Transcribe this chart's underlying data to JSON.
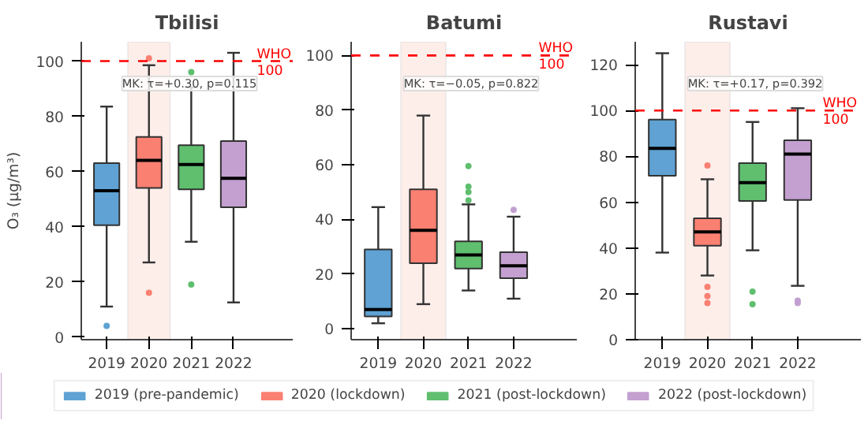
{
  "chart_data": [
    {
      "type": "box",
      "title": "Tbilisi",
      "ylabel": "O₃ (µg/m³)",
      "categories": [
        "2019",
        "2020",
        "2021",
        "2022"
      ],
      "ylim": [
        -1,
        107
      ],
      "yticks": [
        0,
        20,
        40,
        60,
        80,
        100
      ],
      "grid": false,
      "legend": "bottom",
      "series": [
        {
          "name": "2019 (pre-pandemic)",
          "color": "#5fa2d3",
          "boxes": [
            {
              "low": 11,
              "q1": 40.5,
              "median": 53,
              "q3": 63,
              "high": 83.5,
              "outliers": [
                4
              ]
            },
            null,
            null,
            null
          ]
        },
        {
          "name": "2020 (lockdown)",
          "color": "#fa8072",
          "boxes": [
            null,
            {
              "low": 27,
              "q1": 54,
              "median": 64,
              "q3": 72.5,
              "high": 98.5,
              "outliers": [
                16,
                101
              ]
            },
            null,
            null
          ]
        },
        {
          "name": "2021 (post-lockdown)",
          "color": "#5fbf6f",
          "boxes": [
            null,
            null,
            {
              "low": 34.5,
              "q1": 53.5,
              "median": 62.5,
              "q3": 69.5,
              "high": 90.5,
              "outliers": [
                19,
                96
              ]
            },
            null
          ]
        },
        {
          "name": "2022 (post-lockdown)",
          "color": "#c3a0d0",
          "boxes": [
            null,
            null,
            null,
            {
              "low": 12.5,
              "q1": 47,
              "median": 57.5,
              "q3": 71,
              "high": 103
            }
          ]
        }
      ],
      "ref_lines": [
        {
          "axis": "y",
          "value": 100,
          "label": "WHO\n100",
          "color": "#ff0000",
          "line_style": "dashed"
        }
      ],
      "bands": [
        {
          "axis": "x",
          "from": "2020",
          "to": "2020",
          "color": "#fdeeea"
        }
      ],
      "annotations": [
        "MK: τ=+0.30, p=0.115"
      ]
    },
    {
      "type": "box",
      "title": "Batumi",
      "categories": [
        "2019",
        "2020",
        "2021",
        "2022"
      ],
      "ylim": [
        -4,
        105
      ],
      "yticks": [
        0,
        20,
        40,
        60,
        80,
        100
      ],
      "grid": false,
      "series": [
        {
          "color": "#5fa2d3",
          "boxes": [
            {
              "low": 2,
              "q1": 4.5,
              "median": 7,
              "q3": 29,
              "high": 44.5
            },
            null,
            null,
            null
          ]
        },
        {
          "color": "#fa8072",
          "boxes": [
            null,
            {
              "low": 9,
              "q1": 24,
              "median": 36,
              "q3": 51,
              "high": 78
            },
            null,
            null
          ]
        },
        {
          "color": "#5fbf6f",
          "boxes": [
            null,
            null,
            {
              "low": 14,
              "q1": 22,
              "median": 27,
              "q3": 32,
              "high": 45.5,
              "outliers": [
                47,
                50,
                52,
                59.5
              ]
            },
            null
          ]
        },
        {
          "color": "#c3a0d0",
          "boxes": [
            null,
            null,
            null,
            {
              "low": 11,
              "q1": 18.5,
              "median": 23,
              "q3": 28,
              "high": 41,
              "outliers": [
                43.5
              ]
            }
          ]
        }
      ],
      "ref_lines": [
        {
          "axis": "y",
          "value": 100,
          "label": "WHO\n100",
          "color": "#ff0000",
          "line_style": "dashed"
        }
      ],
      "bands": [
        {
          "axis": "x",
          "from": "2020",
          "to": "2020",
          "color": "#fdeeea"
        }
      ],
      "annotations": [
        "MK: τ=−0.05, p=0.822"
      ]
    },
    {
      "type": "box",
      "title": "Rustavi",
      "categories": [
        "2019",
        "2020",
        "2021",
        "2022"
      ],
      "ylim": [
        0,
        130
      ],
      "yticks": [
        0,
        20,
        40,
        60,
        80,
        100,
        120
      ],
      "grid": false,
      "series": [
        {
          "color": "#5fa2d3",
          "boxes": [
            {
              "low": 38,
              "q1": 71.5,
              "median": 83.5,
              "q3": 96,
              "high": 125
            },
            null,
            null,
            null
          ]
        },
        {
          "color": "#fa8072",
          "boxes": [
            null,
            {
              "low": 28,
              "q1": 41,
              "median": 47,
              "q3": 53,
              "high": 70,
              "outliers": [
                76,
                23,
                19,
                16
              ]
            },
            null,
            null
          ]
        },
        {
          "color": "#5fbf6f",
          "boxes": [
            null,
            null,
            {
              "low": 39,
              "q1": 60.5,
              "median": 68.5,
              "q3": 77,
              "high": 95,
              "outliers": [
                21,
                15.5
              ]
            },
            null
          ]
        },
        {
          "color": "#c3a0d0",
          "boxes": [
            null,
            null,
            null,
            {
              "low": 23.5,
              "q1": 61,
              "median": 81,
              "q3": 87,
              "high": 101,
              "outliers": [
                17,
                16
              ]
            }
          ]
        }
      ],
      "ref_lines": [
        {
          "axis": "y",
          "value": 100,
          "label": "WHO\n100",
          "color": "#ff0000",
          "line_style": "dashed"
        }
      ],
      "bands": [
        {
          "axis": "x",
          "from": "2020",
          "to": "2020",
          "color": "#fdeeea"
        }
      ],
      "annotations": [
        "MK: τ=+0.17, p=0.392"
      ]
    }
  ]
}
